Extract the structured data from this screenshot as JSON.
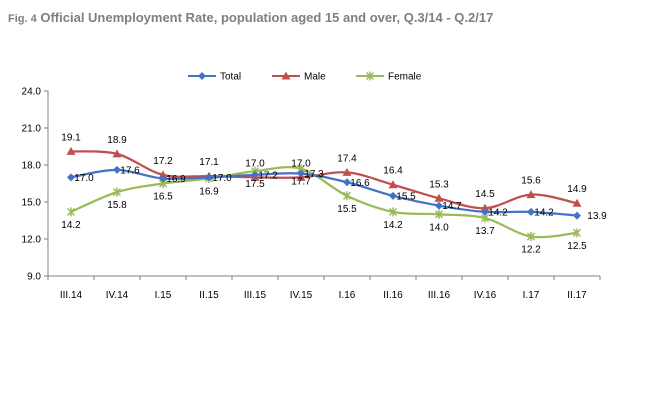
{
  "title_prefix": "Fig. 4",
  "title_main": "Official Unemployment Rate, population aged 15 and over, Q.3/14 - Q.2/17",
  "chart_data": {
    "type": "line",
    "categories": [
      "III.14",
      "IV.14",
      "I.15",
      "II.15",
      "III.15",
      "IV.15",
      "I.16",
      "II.16",
      "III.16",
      "IV.16",
      "I.17",
      "II.17"
    ],
    "ylim": [
      9.0,
      24.0
    ],
    "yticks": [
      "9.0",
      "12.0",
      "15.0",
      "18.0",
      "21.0",
      "24.0"
    ],
    "grid": false,
    "legend_position": "top",
    "series": [
      {
        "name": "Total",
        "color": "#4472C4",
        "marker": "diamond",
        "values": [
          17.0,
          17.6,
          16.9,
          17.0,
          17.2,
          17.3,
          16.6,
          15.5,
          14.7,
          14.2,
          14.2,
          13.9
        ],
        "labels": [
          "17.0",
          "17.6",
          "16.9",
          "17.0",
          "17.2",
          "17.3",
          "16.6",
          "15.5",
          "14.7",
          "14.2",
          "14.2",
          "13.9"
        ]
      },
      {
        "name": "Male",
        "color": "#C0504D",
        "marker": "triangle",
        "values": [
          19.1,
          18.9,
          17.2,
          17.1,
          17.0,
          17.0,
          17.4,
          16.4,
          15.3,
          14.5,
          15.6,
          14.9
        ],
        "labels": [
          "19.1",
          "18.9",
          "17.2",
          "17.1",
          "17.0",
          "17.0",
          "17.4",
          "16.4",
          "15.3",
          "14.5",
          "15.6",
          "14.9"
        ]
      },
      {
        "name": "Female",
        "color": "#9BBB59",
        "marker": "star",
        "values": [
          14.2,
          15.8,
          16.5,
          16.9,
          17.5,
          17.7,
          15.5,
          14.2,
          14.0,
          13.7,
          12.2,
          12.5
        ],
        "labels": [
          "14.2",
          "15.8",
          "16.5",
          "16.9",
          "17.5",
          "17.7",
          "15.5",
          "14.2",
          "14.0",
          "13.7",
          "12.2",
          "12.5"
        ]
      }
    ]
  }
}
